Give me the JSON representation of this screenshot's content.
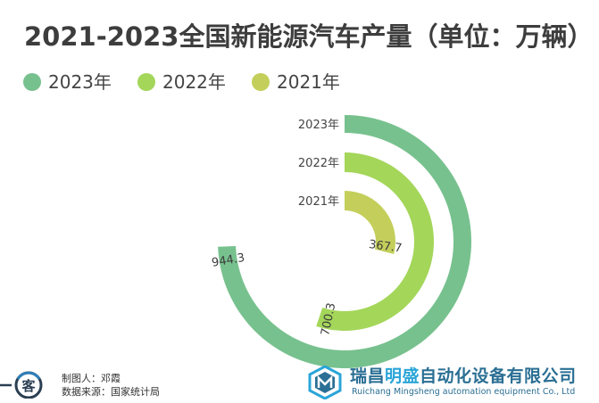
{
  "title": "2021-2023全国新能源汽车产量（单位：万辆）",
  "legend": [
    {
      "label": "2023年",
      "color": "#77c18e"
    },
    {
      "label": "2022年",
      "color": "#a4d65a"
    },
    {
      "label": "2021年",
      "color": "#c3cf5a"
    }
  ],
  "chart_data": {
    "type": "radial-bar",
    "title": "2021-2023全国新能源汽车产量（单位：万辆）",
    "unit": "万辆",
    "categories": [
      "2023年",
      "2022年",
      "2021年"
    ],
    "values": [
      944.3,
      700.3,
      367.7
    ],
    "value_labels": [
      "944.3",
      "700.3",
      "367.7"
    ],
    "colors": [
      "#77c18e",
      "#a4d65a",
      "#c3cf5a"
    ],
    "max": 1270,
    "legend_position": "top-left"
  },
  "footer": {
    "author": "制图人：邓霞",
    "source": "数据来源：国家统计局",
    "left_logo_text": "客",
    "company_name_before": "瑞昌",
    "company_name_highlight": "明盛",
    "company_name_after": "自动化设备有限公司",
    "company_name_en": "Ruichang Mingsheng automation equipment Co., Ltd"
  }
}
